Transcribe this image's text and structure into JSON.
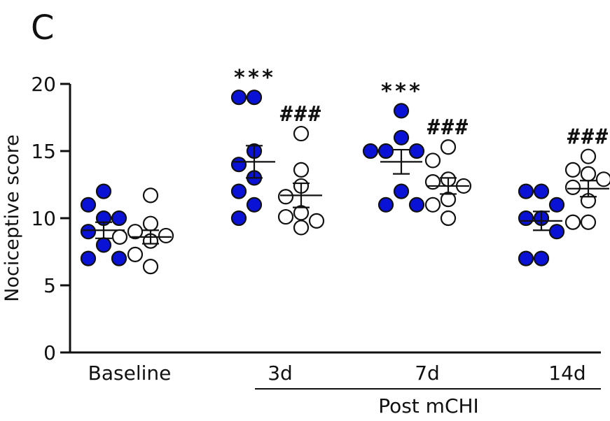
{
  "panel_label": "C",
  "chart_data": {
    "type": "scatter",
    "title": "",
    "xlabel": "",
    "ylabel": "Nociceptive score",
    "ylim": [
      0,
      20
    ],
    "yticks": [
      0,
      5,
      10,
      15,
      20
    ],
    "categories": [
      "Baseline",
      "3d",
      "7d",
      "14d"
    ],
    "group_label": "Post mCHI",
    "grid": false,
    "series": [
      {
        "marker": "filled",
        "color": "#0a12d6",
        "points": {
          "Baseline": [
            12,
            11,
            10,
            10,
            9,
            8,
            7,
            7
          ],
          "3d": [
            19,
            19,
            15,
            14,
            13,
            12,
            11,
            10
          ],
          "7d": [
            18,
            16,
            15,
            15,
            15,
            12,
            11,
            11
          ],
          "14d": [
            12,
            12,
            11,
            10,
            10,
            9,
            7,
            7
          ]
        },
        "mean": {
          "Baseline": 9.1,
          "3d": 14.2,
          "7d": 14.2,
          "14d": 9.8
        },
        "sem": {
          "Baseline": 0.6,
          "3d": 1.2,
          "7d": 0.9,
          "14d": 0.7
        }
      },
      {
        "marker": "open",
        "color": "#ffffff",
        "points": {
          "Baseline": [
            11.7,
            9.6,
            9.0,
            8.7,
            8.6,
            8.3,
            7.3,
            6.4
          ],
          "3d": [
            16.3,
            13.6,
            12.4,
            11.6,
            10.4,
            10.1,
            9.8,
            9.3
          ],
          "7d": [
            15.3,
            14.3,
            12.9,
            12.7,
            12.4,
            11.4,
            11.0,
            10.0
          ],
          "14d": [
            14.6,
            13.6,
            13.3,
            12.9,
            12.3,
            11.3,
            9.7,
            9.7
          ]
        },
        "mean": {
          "Baseline": 8.6,
          "3d": 11.7,
          "7d": 12.4,
          "14d": 12.2
        },
        "sem": {
          "Baseline": 0.5,
          "3d": 0.9,
          "7d": 0.6,
          "14d": 0.6
        }
      }
    ],
    "annotations": [
      {
        "category": "3d",
        "series": 0,
        "text": "***"
      },
      {
        "category": "3d",
        "series": 1,
        "text": "###"
      },
      {
        "category": "7d",
        "series": 0,
        "text": "***"
      },
      {
        "category": "7d",
        "series": 1,
        "text": "###"
      },
      {
        "category": "14d",
        "series": 1,
        "text": "###"
      }
    ]
  }
}
